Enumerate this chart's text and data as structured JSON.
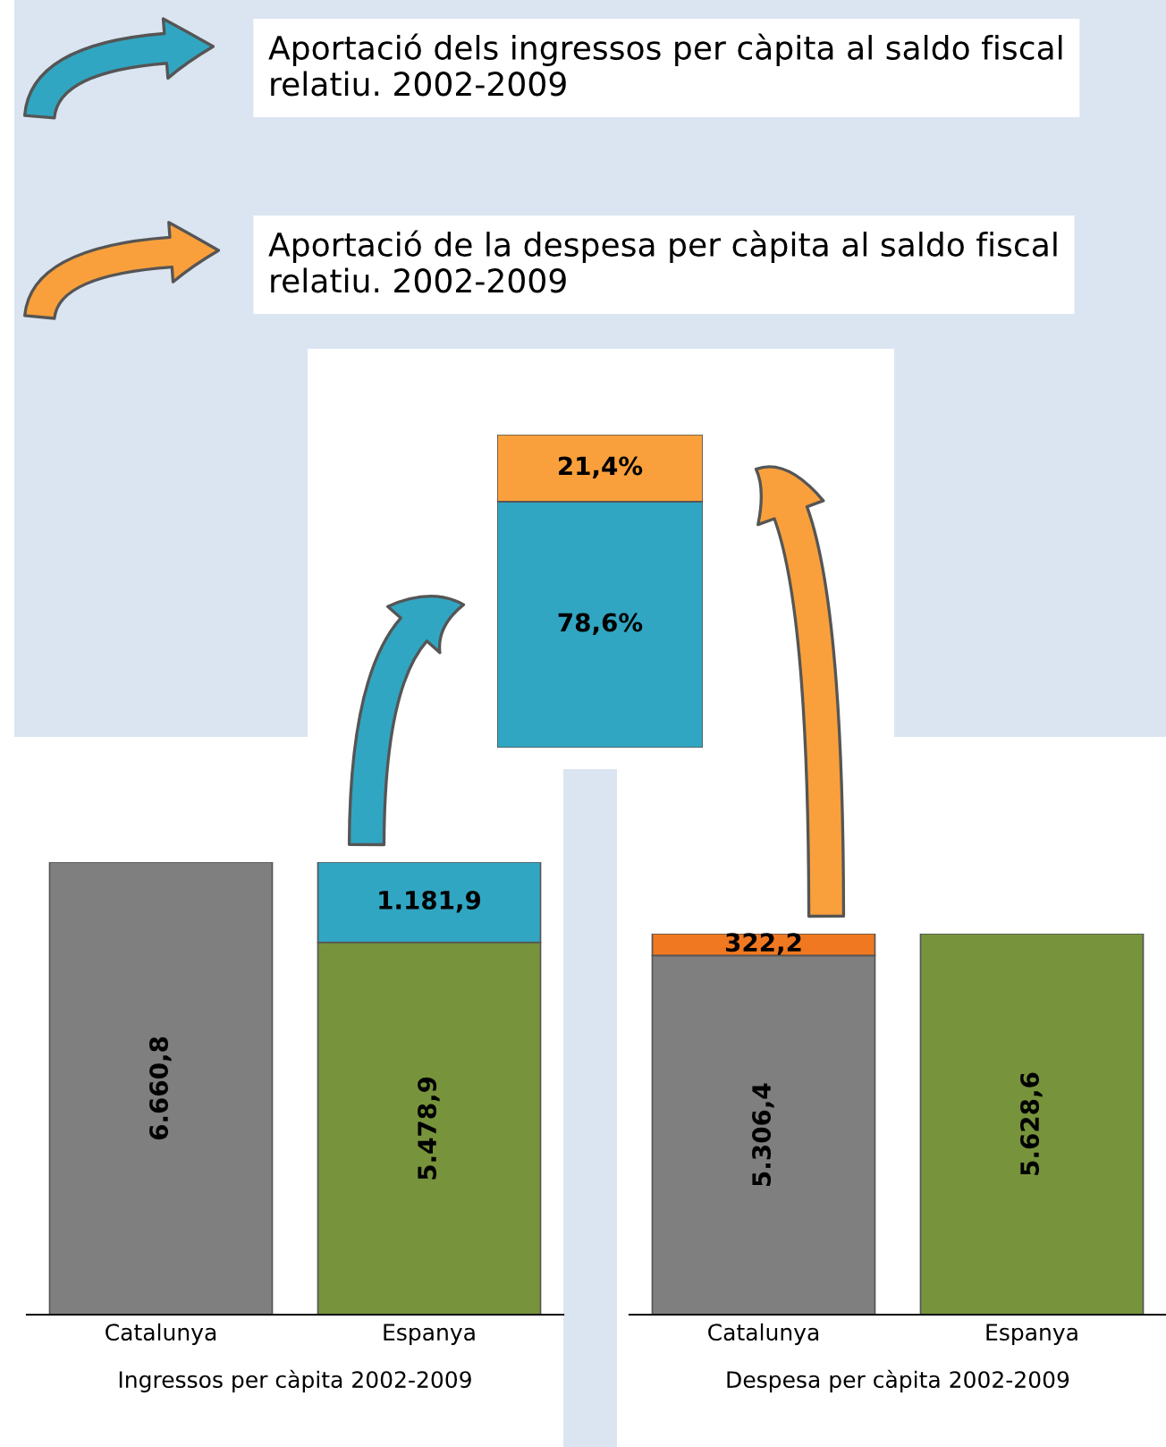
{
  "chart_data": [
    {
      "type": "bar",
      "stacked": true,
      "xlabel": "Ingressos per càpita 2002-2009",
      "categories": [
        "Catalunya",
        "Espanya"
      ],
      "tick_labels": "x",
      "series": [
        {
          "colors": [
            "#7f7f7f",
            "#77933c"
          ],
          "values": [
            6660.8,
            5478.9
          ],
          "value_labels": [
            "6.660,8",
            "5.478,9"
          ]
        },
        {
          "color": "#31a6c2",
          "values": [
            null,
            1181.9
          ],
          "value_labels": [
            null,
            "1.181,9"
          ]
        }
      ]
    },
    {
      "type": "bar",
      "stacked": true,
      "xlabel": "Despesa per càpita 2002-2009",
      "categories": [
        "Catalunya",
        "Espanya"
      ],
      "tick_labels": "x",
      "series": [
        {
          "colors": [
            "#7f7f7f",
            "#77933c"
          ],
          "values": [
            5306.4,
            5628.6
          ],
          "value_labels": [
            "5.306,4",
            "5.628,6"
          ]
        },
        {
          "color": "#f07820",
          "values": [
            322.2,
            null
          ],
          "value_labels": [
            "322,2",
            null
          ]
        }
      ]
    },
    {
      "type": "bar",
      "stacked": true,
      "categories": [
        null
      ],
      "ylim": [
        0,
        100
      ],
      "tick_labels": false,
      "annotations": [
        "Aportació dels ingressos per càpita al saldo fiscal relatiu. 2002-2009",
        "Aportació de la despesa per càpita al saldo fiscal relatiu. 2002-2009"
      ],
      "series": [
        {
          "color": "#31a6c2",
          "values": [
            78.6
          ],
          "value_labels": [
            "78,6%"
          ]
        },
        {
          "color": "#f9a03c",
          "values": [
            21.4
          ],
          "value_labels": [
            "21,4%"
          ]
        }
      ]
    }
  ]
}
